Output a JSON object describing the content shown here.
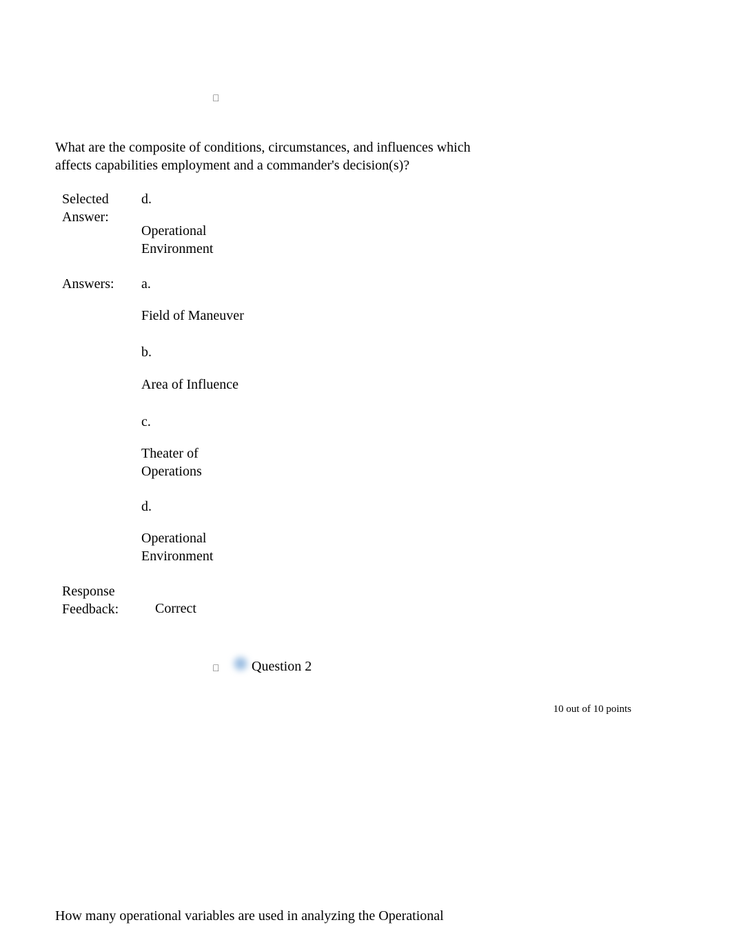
{
  "marker_glyph": "",
  "question1": {
    "text": "What are the composite of conditions, circumstances, and influences which affects capabilities employment and a commander's decision(s)?",
    "selected_label": "Selected Answer:",
    "selected_letter": "d.",
    "selected_text": "Operational Environment",
    "answers_label": "Answers:",
    "options": {
      "a": {
        "letter": "a.",
        "text": "Field of Maneuver"
      },
      "b": {
        "letter": "b.",
        "text": "Area of Influence"
      },
      "c": {
        "letter": "c.",
        "text": "Theater of Operations"
      },
      "d": {
        "letter": "d.",
        "text": "Operational Environment"
      }
    },
    "response_label": "Response Feedback:",
    "response_text": "Correct"
  },
  "question2": {
    "label": "Question 2",
    "points": "10 out of 10 points",
    "text": "How many operational variables are used in analyzing the Operational"
  },
  "colors": {
    "text": "#000000",
    "background": "#ffffff",
    "marker": "#555555",
    "blur_icon": "#7aa8d8"
  }
}
